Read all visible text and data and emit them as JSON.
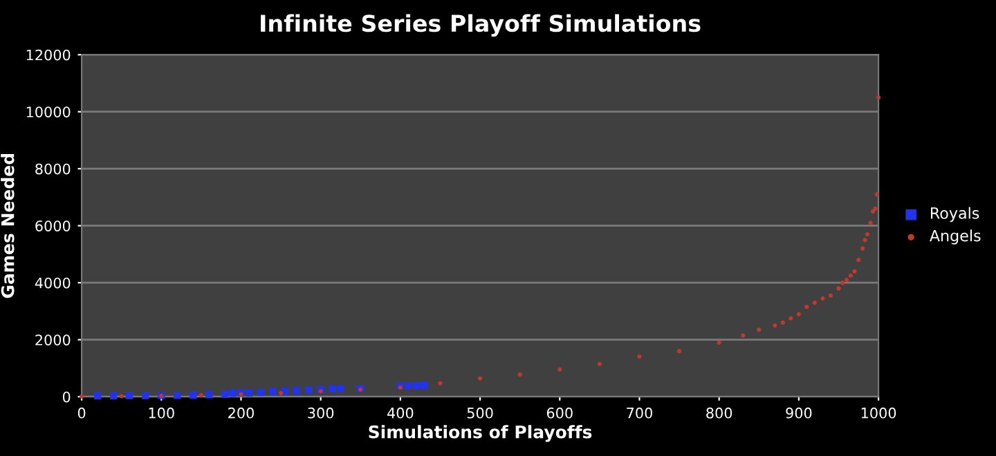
{
  "chart_data": {
    "type": "scatter",
    "title": "Infinite Series Playoff Simulations",
    "xlabel": "Simulations of Playoffs",
    "ylabel": "Games Needed",
    "xlim": [
      0,
      1000
    ],
    "xticks": [
      0,
      100,
      200,
      300,
      400,
      500,
      600,
      700,
      800,
      900,
      1000
    ],
    "ylim": [
      0,
      12000
    ],
    "yticks": [
      0,
      2000,
      4000,
      6000,
      8000,
      10000,
      12000
    ],
    "grid": "y",
    "legend": "right",
    "series": [
      {
        "name": "Royals",
        "color": "#2233ee",
        "marker": "square",
        "x": [
          20,
          40,
          60,
          80,
          100,
          120,
          140,
          160,
          180,
          190,
          200,
          210,
          225,
          240,
          255,
          270,
          285,
          300,
          315,
          325,
          350,
          400,
          410,
          420,
          430
        ],
        "values": [
          30,
          30,
          40,
          40,
          50,
          50,
          60,
          70,
          80,
          120,
          130,
          130,
          150,
          170,
          200,
          210,
          230,
          250,
          270,
          280,
          290,
          370,
          380,
          390,
          400
        ]
      },
      {
        "name": "Angels",
        "color": "#c0392b",
        "marker": "circle",
        "x": [
          0,
          50,
          100,
          150,
          200,
          250,
          300,
          350,
          400,
          450,
          500,
          550,
          600,
          650,
          700,
          750,
          800,
          830,
          850,
          870,
          880,
          890,
          900,
          910,
          920,
          930,
          940,
          950,
          955,
          960,
          965,
          970,
          975,
          980,
          983,
          986,
          990,
          993,
          996,
          998,
          1000
        ],
        "values": [
          10,
          20,
          30,
          50,
          80,
          130,
          190,
          250,
          320,
          470,
          640,
          780,
          960,
          1150,
          1410,
          1600,
          1900,
          2150,
          2350,
          2500,
          2600,
          2750,
          2900,
          3150,
          3300,
          3450,
          3550,
          3800,
          4000,
          4100,
          4250,
          4400,
          4800,
          5200,
          5500,
          5700,
          6100,
          6500,
          6600,
          7100,
          10500
        ]
      }
    ]
  }
}
